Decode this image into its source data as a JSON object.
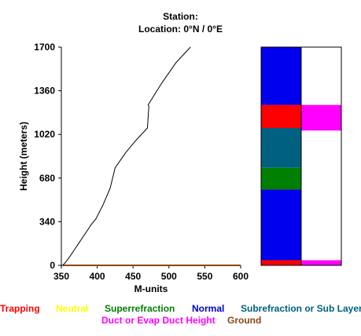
{
  "header": {
    "station_line": "Station:",
    "location_line": "Location:   0°N /   0°E"
  },
  "chart_data": {
    "type": "line",
    "title": "",
    "xlabel": "M-units",
    "ylabel": "Height (meters)",
    "xlim": [
      350,
      600
    ],
    "ylim": [
      0,
      1700
    ],
    "x_ticks": [
      350,
      400,
      450,
      500,
      550,
      600
    ],
    "y_ticks": [
      0,
      340,
      680,
      1020,
      1360,
      1700
    ],
    "profile": {
      "x": [
        352,
        356,
        362,
        368,
        374,
        380,
        386,
        392,
        398,
        408,
        418,
        425,
        440,
        455,
        470,
        472,
        471,
        490,
        510,
        530
      ],
      "y": [
        0,
        25,
        70,
        120,
        170,
        220,
        270,
        320,
        360,
        470,
        600,
        760,
        880,
        980,
        1070,
        1240,
        1250,
        1420,
        1580,
        1700
      ]
    },
    "ground_line": {
      "x": [
        352,
        600
      ],
      "y": [
        0,
        0
      ],
      "color": "#8b4513"
    },
    "layer_columns": {
      "left": [
        {
          "from": 0,
          "to": 40,
          "color": "#ff0000"
        },
        {
          "from": 40,
          "to": 590,
          "color": "#0000ee"
        },
        {
          "from": 590,
          "to": 760,
          "color": "#008000"
        },
        {
          "from": 760,
          "to": 1070,
          "color": "#006080"
        },
        {
          "from": 1070,
          "to": 1250,
          "color": "#ff0000"
        },
        {
          "from": 1250,
          "to": 1700,
          "color": "#0000ee"
        }
      ],
      "right": [
        {
          "from": 0,
          "to": 40,
          "color": "#ff00ff"
        },
        {
          "from": 40,
          "to": 1050,
          "color": "#ffffff"
        },
        {
          "from": 1050,
          "to": 1250,
          "color": "#ff00ff"
        },
        {
          "from": 1250,
          "to": 1700,
          "color": "#ffffff"
        }
      ]
    },
    "legend": [
      {
        "label": "Trapping",
        "color": "#ff0000"
      },
      {
        "label": "Neutral",
        "color": "#ffff00"
      },
      {
        "label": "Superrefraction",
        "color": "#008000"
      },
      {
        "label": "Normal",
        "color": "#0000cc"
      },
      {
        "label": "Subrefraction or Sub Layer",
        "color": "#006080"
      },
      {
        "label": "Duct or Evap Duct Height",
        "color": "#ff00ff"
      },
      {
        "label": "Ground",
        "color": "#8b4513"
      }
    ]
  }
}
